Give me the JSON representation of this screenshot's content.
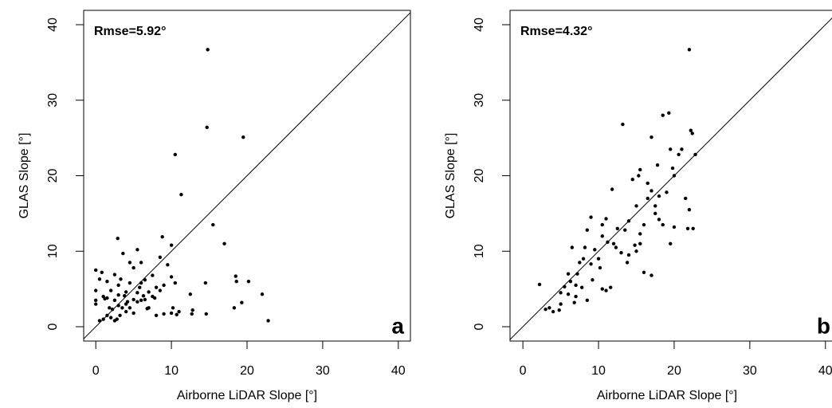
{
  "chart_data": [
    {
      "type": "scatter",
      "x_label": "Airborne LiDAR Slope [°]",
      "y_label": "GLAS Slope [°]",
      "annotation": "Rmse=5.92°",
      "panel_label": "a",
      "color": "#000000",
      "xlim": [
        -1.6,
        41.6
      ],
      "ylim": [
        -1.9,
        41.9
      ],
      "xticks": [
        0,
        10,
        20,
        30,
        40
      ],
      "yticks": [
        0,
        10,
        20,
        30,
        40
      ],
      "x": [
        14.8,
        14.7,
        19.5,
        10.5,
        11.3,
        15.5,
        17,
        2.9,
        8.8,
        10,
        5.5,
        0,
        0.8,
        1.5,
        0.5,
        0,
        0,
        0,
        1,
        1.5,
        2,
        2.5,
        3,
        3,
        3.5,
        4,
        4,
        4.5,
        4.5,
        5,
        5.5,
        5.5,
        6,
        6,
        6.5,
        6.5,
        7,
        7,
        7.5,
        8,
        8.5,
        8.5,
        9,
        9,
        9.5,
        10,
        10,
        10.2,
        10.5,
        10.7,
        12.5,
        12.7,
        12.8,
        14.5,
        14.6,
        18.5,
        18.6,
        18.3,
        19.3,
        20.2,
        22,
        22.8,
        1,
        0.5,
        1.5,
        2,
        2.5,
        2.2,
        3,
        3.2,
        4,
        4.5,
        5,
        5,
        6,
        6.8,
        7.5,
        2.8,
        3.8,
        4.2,
        5.8,
        6.3,
        1.8,
        2.5,
        1.2,
        3.3,
        7.8,
        8,
        11,
        3.6
      ],
      "values": [
        36.7,
        26.4,
        25.1,
        22.8,
        17.5,
        13.5,
        11,
        11.7,
        11.9,
        10.8,
        10.2,
        7.5,
        7.2,
        6,
        6.3,
        4.8,
        3.5,
        3,
        4,
        3.8,
        4.8,
        3.5,
        4.2,
        5.5,
        2.5,
        3,
        4.6,
        5.8,
        8.5,
        7.8,
        4.5,
        3.3,
        5.8,
        8.5,
        6.2,
        3.6,
        4.6,
        2.5,
        6.8,
        5.2,
        4.8,
        9.2,
        5.5,
        1.7,
        8.2,
        6.6,
        1.8,
        2.5,
        5.8,
        1.6,
        4.3,
        1.7,
        2.2,
        5.8,
        1.7,
        6.7,
        6,
        2.5,
        3.2,
        6,
        4.3,
        0.8,
        1,
        0.8,
        1.5,
        1.2,
        0.8,
        2.3,
        2.8,
        1.5,
        2,
        2.5,
        1.8,
        3.6,
        3.5,
        2.4,
        4,
        1,
        4.1,
        3.3,
        5.2,
        4.1,
        2.5,
        6.9,
        3.7,
        6.3,
        3.8,
        1.5,
        2,
        9.7
      ]
    },
    {
      "type": "scatter",
      "x_label": "Airborne LiDAR Slope [°]",
      "y_label": "GLAS Slope [°]",
      "annotation": "Rmse=4.32°",
      "panel_label": "b",
      "color": "#000000",
      "xlim": [
        -1.7,
        41.5
      ],
      "ylim": [
        -1.9,
        41.9
      ],
      "xticks": [
        0,
        10,
        20,
        30,
        40
      ],
      "yticks": [
        0,
        10,
        20,
        30,
        40
      ],
      "x": [
        22,
        19.3,
        18.5,
        13.2,
        22.2,
        22.4,
        17,
        19.5,
        21,
        22.8,
        20.6,
        15.5,
        15.3,
        20,
        11.8,
        17.8,
        14.5,
        16.5,
        17,
        19,
        21.5,
        22,
        22.5,
        21.8,
        18.5,
        20,
        19.5,
        16.5,
        17.5,
        17.5,
        18,
        16,
        15.5,
        14,
        13.5,
        12.5,
        13,
        14,
        15,
        15.5,
        14.8,
        16,
        17,
        11,
        10.5,
        9,
        8.5,
        10.5,
        11.2,
        9.5,
        10,
        9,
        8.2,
        8,
        7.5,
        7.2,
        6.5,
        6,
        6.3,
        7,
        7,
        8.5,
        10.5,
        11,
        11.6,
        6,
        5.5,
        5,
        5,
        4.8,
        4,
        3.5,
        3,
        2.2,
        7.8,
        12.3,
        13.8,
        18,
        19.8,
        6.8,
        9.2,
        10.2,
        12,
        15
      ],
      "values": [
        36.7,
        28.3,
        28,
        26.8,
        26,
        25.6,
        25.1,
        23.5,
        23.5,
        22.8,
        22.8,
        20.8,
        20,
        20,
        18.2,
        21.4,
        19.5,
        19,
        18,
        17.8,
        17,
        15.5,
        13,
        13,
        13.5,
        13.2,
        11,
        17,
        16,
        15,
        14.2,
        13.5,
        12.3,
        14,
        12.8,
        13,
        9.8,
        9.5,
        10,
        11,
        10.8,
        7.2,
        6.8,
        14.3,
        13.5,
        14.5,
        12.8,
        12,
        11.2,
        10.2,
        9,
        8.3,
        10.5,
        9,
        8.5,
        7,
        10.5,
        7,
        6,
        5.5,
        4,
        3.5,
        5,
        4.8,
        5.2,
        4.3,
        5.3,
        4.5,
        3,
        2.2,
        2,
        2.5,
        2.3,
        5.6,
        5.2,
        10.5,
        8.5,
        17.3,
        21,
        3.2,
        6.2,
        7.8,
        11,
        16
      ]
    }
  ]
}
